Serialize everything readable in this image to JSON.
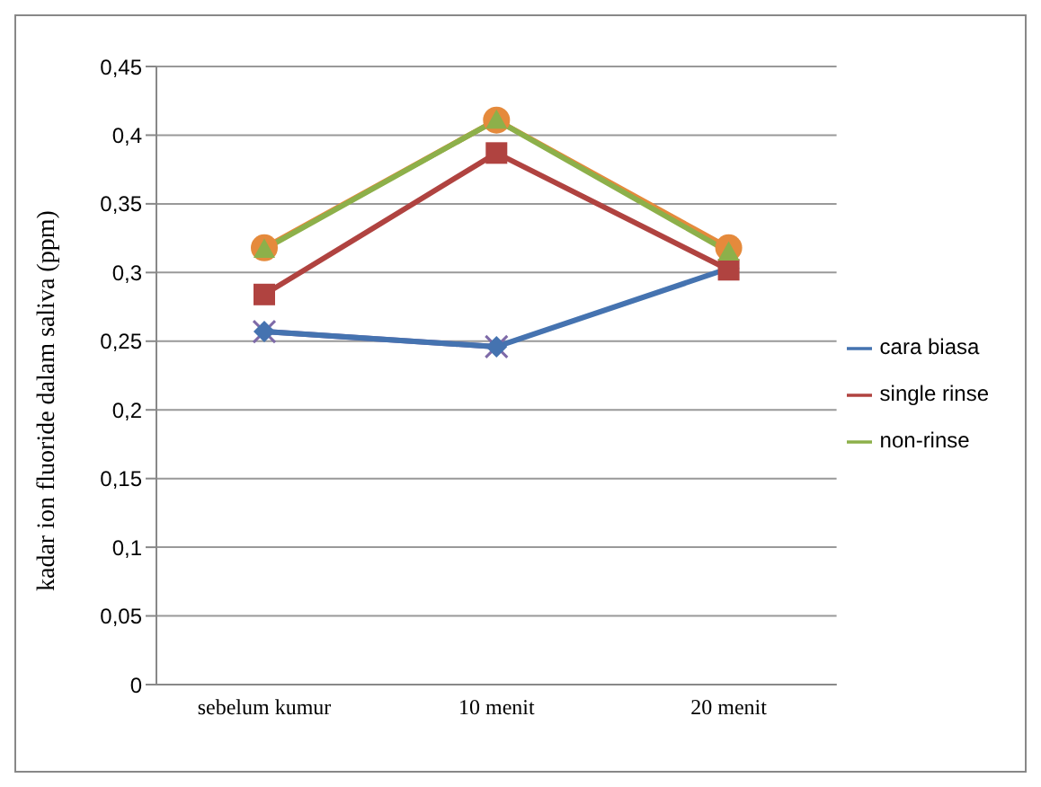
{
  "chart_data": {
    "type": "line",
    "ylabel": "kadar ion fluoride dalam saliva (ppm)",
    "categories": [
      "sebelum kumur",
      "10 menit",
      "20 menit"
    ],
    "series": [
      {
        "color": "#7e6aa8",
        "marker": "cross",
        "values": [
          0.257,
          0.246,
          null
        ]
      },
      {
        "color": "#e58a3c",
        "marker": "circle",
        "values": [
          0.318,
          0.411,
          0.318
        ]
      },
      {
        "name": "cara biasa",
        "color": "#4573b0",
        "marker": "diamond",
        "values": [
          0.257,
          0.246,
          0.303
        ]
      },
      {
        "name": "single rinse",
        "color": "#b04340",
        "marker": "square",
        "values": [
          0.284,
          0.387,
          0.302
        ]
      },
      {
        "name": "non-rinse",
        "color": "#8db04a",
        "marker": "triangle",
        "values": [
          0.317,
          0.411,
          0.315
        ]
      }
    ],
    "ylim": [
      0,
      0.45
    ],
    "yticks": [
      {
        "value": 0,
        "label": "0"
      },
      {
        "value": 0.05,
        "label": "0,05"
      },
      {
        "value": 0.1,
        "label": "0,1"
      },
      {
        "value": 0.15,
        "label": "0,15"
      },
      {
        "value": 0.2,
        "label": "0,2"
      },
      {
        "value": 0.25,
        "label": "0,25"
      },
      {
        "value": 0.3,
        "label": "0,3"
      },
      {
        "value": 0.35,
        "label": "0,35"
      },
      {
        "value": 0.4,
        "label": "0,4"
      },
      {
        "value": 0.45,
        "label": "0,45"
      }
    ],
    "grid": "y",
    "legend": "right"
  }
}
